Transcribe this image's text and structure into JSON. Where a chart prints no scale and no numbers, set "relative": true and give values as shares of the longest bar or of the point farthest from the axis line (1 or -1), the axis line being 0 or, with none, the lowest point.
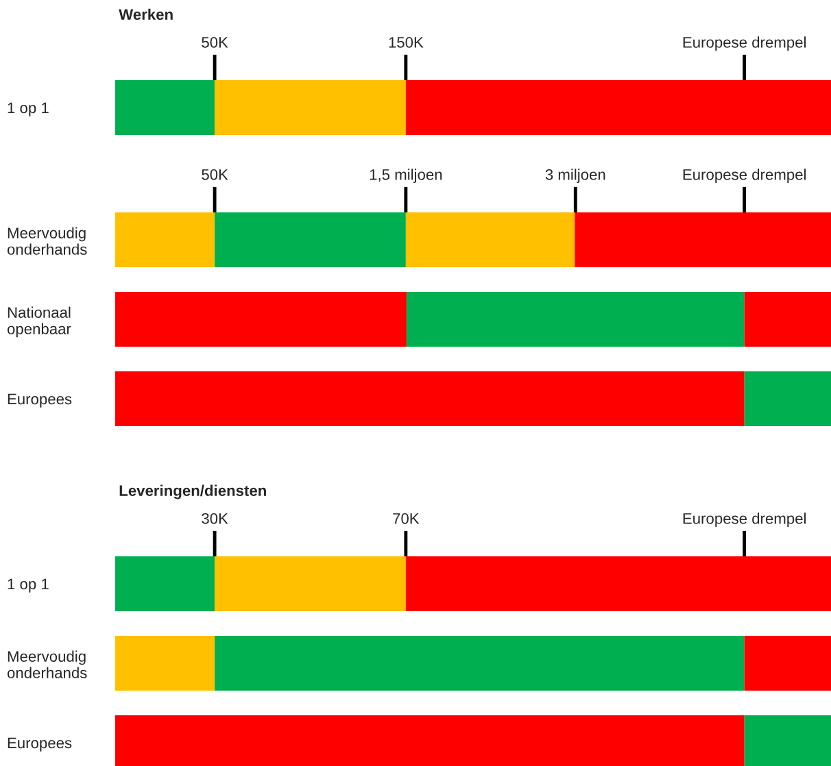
{
  "chart_data": [
    {
      "type": "bar",
      "orientation": "horizontal",
      "stacked": true,
      "relative": true,
      "title": "Werken",
      "categories": [
        "1 op 1"
      ],
      "series": [
        {
          "values": [
            0.139
          ],
          "colors": [
            "#00b050"
          ]
        },
        {
          "values": [
            0.267
          ],
          "colors": [
            "#ffc000"
          ]
        },
        {
          "values": [
            0.594
          ],
          "colors": [
            "#ff0000"
          ]
        }
      ],
      "ref_lines": [
        {
          "axis": "x",
          "value": 0.139,
          "label": "50K"
        },
        {
          "axis": "x",
          "value": 0.406,
          "label": "150K"
        },
        {
          "axis": "x",
          "value": 0.879,
          "label": "Europese drempel"
        }
      ]
    },
    {
      "type": "bar",
      "orientation": "horizontal",
      "stacked": true,
      "relative": true,
      "categories": [
        "Meervoudig\nonderhands",
        "Nationaal\nopenbaar",
        "Europees"
      ],
      "series": [
        {
          "values": [
            0.139,
            0.407,
            0.879
          ],
          "colors": [
            "#ffc000",
            "#ff0000",
            "#ff0000"
          ]
        },
        {
          "values": [
            0.267,
            0.472,
            0.121
          ],
          "colors": [
            "#00b050",
            "#00b050",
            "#00b050"
          ]
        },
        {
          "values": [
            0.236,
            0.121,
            null
          ],
          "colors": [
            "#ffc000",
            "#ff0000",
            null
          ]
        },
        {
          "values": [
            0.358,
            null,
            null
          ],
          "colors": [
            "#ff0000",
            null,
            null
          ]
        }
      ],
      "ref_lines": [
        {
          "axis": "x",
          "value": 0.139,
          "label": "50K"
        },
        {
          "axis": "x",
          "value": 0.406,
          "label": "1,5 miljoen"
        },
        {
          "axis": "x",
          "value": 0.643,
          "label": "3 miljoen"
        },
        {
          "axis": "x",
          "value": 0.879,
          "label": "Europese drempel"
        }
      ]
    },
    {
      "type": "bar",
      "orientation": "horizontal",
      "stacked": true,
      "relative": true,
      "title": "Leveringen/diensten",
      "categories": [
        "1 op 1",
        "Meervoudig\nonderhands",
        "Europees"
      ],
      "series": [
        {
          "values": [
            0.139,
            0.139,
            0.879
          ],
          "colors": [
            "#00b050",
            "#ffc000",
            "#ff0000"
          ]
        },
        {
          "values": [
            0.267,
            0.74,
            0.121
          ],
          "colors": [
            "#ffc000",
            "#00b050",
            "#00b050"
          ]
        },
        {
          "values": [
            0.594,
            0.121,
            null
          ],
          "colors": [
            "#ff0000",
            "#ff0000",
            null
          ]
        }
      ],
      "ref_lines": [
        {
          "axis": "x",
          "value": 0.139,
          "label": "30K"
        },
        {
          "axis": "x",
          "value": 0.406,
          "label": "70K"
        },
        {
          "axis": "x",
          "value": 0.879,
          "label": "Europese drempel"
        }
      ]
    }
  ]
}
